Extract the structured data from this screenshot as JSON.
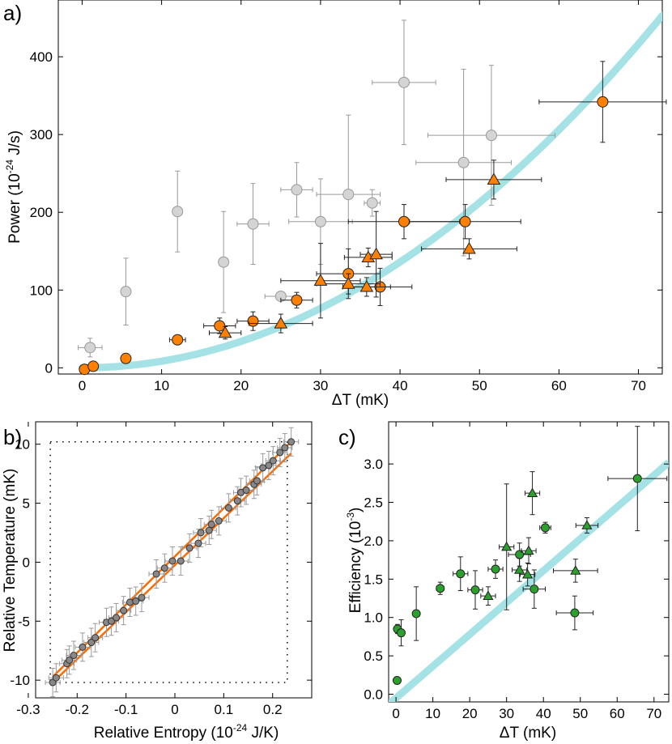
{
  "chart_data": [
    {
      "panel": "a)",
      "type": "scatter",
      "xlabel": "ΔT (mK)",
      "ylabel_main": "Power (10",
      "ylabel_sup": "-24",
      "ylabel_tail": " J/s)",
      "xlim": [
        -3,
        73
      ],
      "ylim": [
        -8,
        473
      ],
      "xticks": [
        0,
        10,
        20,
        30,
        40,
        50,
        60,
        70
      ],
      "yticks": [
        0,
        100,
        200,
        300,
        400
      ],
      "colors": {
        "gray": "#d4d4d4",
        "orange": "#ff8000",
        "curve": "#a4e2e6"
      },
      "curve": {
        "type": "quadratic",
        "coefficient": 0.085
      },
      "series": [
        {
          "marker": "circle",
          "color": "gray",
          "points": [
            [
              1,
              26,
              12,
              1.5
            ],
            [
              5.5,
              98,
              43,
              0
            ],
            [
              12,
              201,
              52,
              0
            ],
            [
              17.8,
              136,
              65,
              0
            ],
            [
              21.5,
              185,
              52,
              2
            ],
            [
              25,
              92,
              0,
              2
            ],
            [
              27,
              229,
              35,
              2
            ],
            [
              30,
              188,
              55,
              4
            ],
            [
              33.5,
              223,
              102,
              4
            ],
            [
              36.5,
              212,
              17,
              1
            ],
            [
              40.5,
              367,
              80,
              4
            ],
            [
              48,
              264,
              120,
              6
            ],
            [
              51.5,
              299,
              90,
              8
            ]
          ]
        },
        {
          "marker": "circle",
          "color": "orange",
          "points": [
            [
              0.3,
              -2,
              4,
              0
            ],
            [
              1.4,
              2,
              4,
              0
            ],
            [
              5.5,
              12,
              5,
              0
            ],
            [
              12,
              36,
              5,
              1
            ],
            [
              17.3,
              54,
              10,
              2
            ],
            [
              21.5,
              60,
              12,
              2
            ],
            [
              27,
              87,
              10,
              2
            ],
            [
              33.5,
              121,
              32,
              4
            ],
            [
              37.5,
              104,
              24,
              4
            ],
            [
              40.5,
              188,
              22,
              7
            ],
            [
              48.2,
              188,
              22,
              7
            ],
            [
              65.5,
              342,
              52,
              8
            ]
          ]
        },
        {
          "marker": "triangle",
          "color": "orange",
          "points": [
            [
              18,
              45,
              8,
              2
            ],
            [
              25,
              57,
              12,
              4
            ],
            [
              30,
              112,
              48,
              5
            ],
            [
              33.5,
              108,
              13,
              4
            ],
            [
              35.8,
              104,
              12,
              3
            ],
            [
              36,
              142,
              12,
              3
            ],
            [
              37,
              146,
              55,
              2
            ],
            [
              48.7,
              153,
              13,
              6
            ],
            [
              51.8,
              242,
              25,
              6
            ]
          ]
        }
      ]
    },
    {
      "panel": "b)",
      "type": "scatter",
      "xlabel_main": "Relative Entropy (10",
      "xlabel_sup": "-24",
      "xlabel_tail": " J/K)",
      "ylabel": "Relative Temperature (mK)",
      "xlim": [
        -0.285,
        0.28
      ],
      "ylim": [
        -11.5,
        11.9
      ],
      "xticks": [
        -0.3,
        -0.2,
        -0.1,
        0,
        0.1,
        0.2
      ],
      "xtick_labels": [
        "-0.3",
        "-0.2",
        "-0.1",
        "0",
        "0.1",
        "0.2"
      ],
      "yticks": [
        -10,
        -5,
        0,
        5,
        10
      ],
      "colors": {
        "point": "#888888",
        "line": "#ff6a00"
      },
      "dotted_box": {
        "x": [
          -0.255,
          0.23
        ],
        "y": [
          -10.2,
          10.2
        ]
      },
      "loop": {
        "upper_offset": 0.012,
        "lower_offset": -0.012,
        "slope_k": 0.0245
      },
      "points": [
        [
          -0.25,
          -10.2
        ],
        [
          -0.243,
          -9.8
        ],
        [
          -0.221,
          -8.6
        ],
        [
          -0.216,
          -8.3
        ],
        [
          -0.207,
          -7.9
        ],
        [
          -0.189,
          -7.2
        ],
        [
          -0.171,
          -6.8
        ],
        [
          -0.163,
          -6.4
        ],
        [
          -0.14,
          -5.1
        ],
        [
          -0.13,
          -5.0
        ],
        [
          -0.12,
          -4.7
        ],
        [
          -0.105,
          -4.1
        ],
        [
          -0.092,
          -3.4
        ],
        [
          -0.08,
          -3.3
        ],
        [
          -0.068,
          -3.0
        ],
        [
          -0.038,
          -1.0
        ],
        [
          -0.021,
          -0.5
        ],
        [
          -0.005,
          0.1
        ],
        [
          0.012,
          0.1
        ],
        [
          0.03,
          1.2
        ],
        [
          0.048,
          1.6
        ],
        [
          0.053,
          2.5
        ],
        [
          0.07,
          2.7
        ],
        [
          0.075,
          3.2
        ],
        [
          0.09,
          3.5
        ],
        [
          0.11,
          4.6
        ],
        [
          0.128,
          5.2
        ],
        [
          0.135,
          5.9
        ],
        [
          0.146,
          6.1
        ],
        [
          0.162,
          6.6
        ],
        [
          0.168,
          6.9
        ],
        [
          0.18,
          8.0
        ],
        [
          0.192,
          8.2
        ],
        [
          0.201,
          8.6
        ],
        [
          0.215,
          9.3
        ],
        [
          0.225,
          9.7
        ],
        [
          0.238,
          10.2
        ]
      ]
    },
    {
      "panel": "c)",
      "type": "scatter",
      "xlabel": "ΔT (mK)",
      "ylabel_main": "Efficiency (10",
      "ylabel_sup": "-3",
      "ylabel_tail": ")",
      "xlim": [
        -2,
        74
      ],
      "ylim": [
        -0.1,
        3.55
      ],
      "xticks": [
        0,
        10,
        20,
        30,
        40,
        50,
        60,
        70
      ],
      "yticks": [
        0.0,
        0.5,
        1.0,
        1.5,
        2.0,
        2.5,
        3.0
      ],
      "ytick_labels": [
        "0.0",
        "0.5",
        "1.0",
        "1.5",
        "2.0",
        "2.5",
        "3.0"
      ],
      "colors": {
        "point": "#2ca02c",
        "curve": "#a4e2e6"
      },
      "line": {
        "slope": 0.0415,
        "intercept": -0.05
      },
      "series": [
        {
          "marker": "circle",
          "points": [
            [
              0.3,
              0.18,
              0.04,
              0
            ],
            [
              0.4,
              0.85,
              0.06,
              0
            ],
            [
              1.4,
              0.8,
              0.17,
              0
            ],
            [
              5.5,
              1.05,
              0.35,
              0
            ],
            [
              12,
              1.38,
              0.08,
              1
            ],
            [
              17.5,
              1.57,
              0.22,
              2
            ],
            [
              21.5,
              1.36,
              0.25,
              2
            ],
            [
              27,
              1.63,
              0.12,
              2
            ],
            [
              33.5,
              1.82,
              0.15,
              3
            ],
            [
              37.5,
              1.37,
              0.25,
              3
            ],
            [
              40.5,
              2.17,
              0.07,
              1.5
            ],
            [
              48.5,
              1.06,
              0.22,
              5
            ],
            [
              65.5,
              2.81,
              0.68,
              8
            ]
          ]
        },
        {
          "marker": "triangle",
          "points": [
            [
              25,
              1.28,
              0.12,
              2
            ],
            [
              30,
              1.92,
              0.82,
              2
            ],
            [
              33.5,
              1.62,
              0.15,
              2
            ],
            [
              35.7,
              1.56,
              0.15,
              2
            ],
            [
              36,
              1.87,
              0.17,
              2
            ],
            [
              37,
              2.62,
              0.28,
              2
            ],
            [
              48.7,
              1.61,
              0.15,
              6
            ],
            [
              51.8,
              2.2,
              0.1,
              3
            ]
          ]
        }
      ]
    }
  ]
}
